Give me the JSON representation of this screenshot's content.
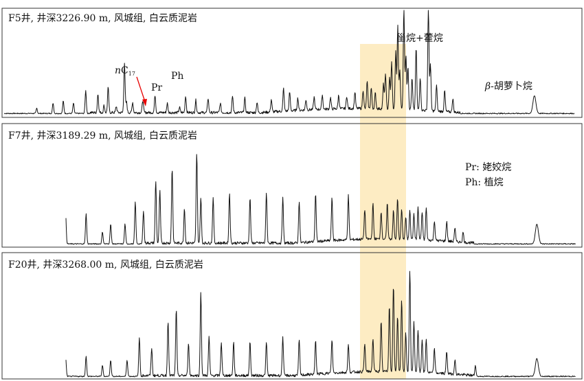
{
  "chart_data": [
    {
      "type": "line",
      "title": "F5井, 井深3226.90 m, 风城组, 白云质泥岩",
      "xlabel": "",
      "ylabel": "",
      "highlight_label": "甾烷+藿烷",
      "annotations": {
        "nc17_italic": "n",
        "nc17_main": "C",
        "nc17_sub": "17",
        "pr": "Pr",
        "ph": "Ph",
        "beta_symbol": "β",
        "beta_text": "-胡萝卜烷"
      },
      "peaks": [
        [
          0.08,
          0.05
        ],
        [
          0.12,
          0.1
        ],
        [
          0.145,
          0.12
        ],
        [
          0.17,
          0.1
        ],
        [
          0.2,
          0.22
        ],
        [
          0.23,
          0.18
        ],
        [
          0.245,
          0.07
        ],
        [
          0.255,
          0.24
        ],
        [
          0.275,
          0.06
        ],
        [
          0.295,
          0.48
        ],
        [
          0.3,
          0.1
        ],
        [
          0.315,
          0.1
        ],
        [
          0.34,
          0.12
        ],
        [
          0.37,
          0.17
        ],
        [
          0.4,
          0.09
        ],
        [
          0.43,
          0.05
        ],
        [
          0.445,
          0.16
        ],
        [
          0.47,
          0.12
        ],
        [
          0.5,
          0.14
        ],
        [
          0.53,
          0.09
        ],
        [
          0.56,
          0.16
        ],
        [
          0.59,
          0.14
        ],
        [
          0.62,
          0.1
        ],
        [
          0.655,
          0.12
        ],
        [
          0.685,
          0.22
        ],
        [
          0.7,
          0.18
        ],
        [
          0.72,
          0.12
        ],
        [
          0.74,
          0.1
        ],
        [
          0.76,
          0.12
        ],
        [
          0.78,
          0.14
        ],
        [
          0.8,
          0.11
        ],
        [
          0.82,
          0.13
        ],
        [
          0.84,
          0.12
        ],
        [
          0.86,
          0.16
        ],
        [
          0.88,
          0.18
        ],
        [
          0.89,
          0.26
        ],
        [
          0.9,
          0.2
        ],
        [
          0.91,
          0.15
        ],
        [
          0.93,
          0.24
        ],
        [
          0.935,
          0.34
        ],
        [
          0.945,
          0.3
        ],
        [
          0.95,
          0.45
        ],
        [
          0.96,
          0.55
        ],
        [
          0.965,
          0.8
        ],
        [
          0.97,
          0.38
        ],
        [
          0.98,
          0.98
        ],
        [
          0.985,
          0.52
        ],
        [
          0.99,
          0.42
        ],
        [
          1.0,
          0.3
        ],
        [
          1.01,
          0.6
        ],
        [
          1.02,
          0.32
        ],
        [
          1.04,
          1.0
        ],
        [
          1.045,
          0.45
        ],
        [
          1.06,
          0.25
        ],
        [
          1.08,
          0.2
        ],
        [
          1.1,
          0.13
        ],
        [
          1.3,
          0.17
        ]
      ]
    },
    {
      "type": "line",
      "title": "F7井, 井深3189.29 m, 风城组, 白云质泥岩",
      "xlabel": "",
      "ylabel": "",
      "legend": {
        "pr": "Pr: 姥姣烷",
        "ph": "Ph: 植烷"
      },
      "peaks": [
        [
          0.09,
          0.03
        ],
        [
          0.12,
          0.15
        ],
        [
          0.15,
          0.3
        ],
        [
          0.2,
          0.3
        ],
        [
          0.24,
          0.12
        ],
        [
          0.26,
          0.2
        ],
        [
          0.295,
          0.2
        ],
        [
          0.32,
          0.42
        ],
        [
          0.34,
          0.33
        ],
        [
          0.37,
          0.62
        ],
        [
          0.38,
          0.52
        ],
        [
          0.41,
          0.75
        ],
        [
          0.44,
          0.35
        ],
        [
          0.47,
          0.9
        ],
        [
          0.48,
          0.45
        ],
        [
          0.51,
          0.45
        ],
        [
          0.55,
          0.5
        ],
        [
          0.6,
          0.45
        ],
        [
          0.64,
          0.5
        ],
        [
          0.68,
          0.45
        ],
        [
          0.72,
          0.42
        ],
        [
          0.76,
          0.48
        ],
        [
          0.8,
          0.42
        ],
        [
          0.84,
          0.44
        ],
        [
          0.88,
          0.3
        ],
        [
          0.9,
          0.35
        ],
        [
          0.92,
          0.28
        ],
        [
          0.935,
          0.35
        ],
        [
          0.95,
          0.28
        ],
        [
          0.96,
          0.4
        ],
        [
          0.97,
          0.3
        ],
        [
          0.98,
          0.22
        ],
        [
          0.99,
          0.3
        ],
        [
          1.0,
          0.25
        ],
        [
          1.01,
          0.32
        ],
        [
          1.02,
          0.28
        ],
        [
          1.03,
          0.32
        ],
        [
          1.05,
          0.2
        ],
        [
          1.08,
          0.2
        ],
        [
          1.1,
          0.14
        ],
        [
          1.12,
          0.1
        ],
        [
          1.3,
          0.2
        ]
      ]
    },
    {
      "type": "line",
      "title": "F20井, 井深3268.00 m, 风城组, 白云质泥岩",
      "xlabel": "",
      "ylabel": "",
      "peaks": [
        [
          0.08,
          0.05
        ],
        [
          0.12,
          0.1
        ],
        [
          0.15,
          0.18
        ],
        [
          0.2,
          0.18
        ],
        [
          0.24,
          0.1
        ],
        [
          0.26,
          0.15
        ],
        [
          0.3,
          0.15
        ],
        [
          0.33,
          0.35
        ],
        [
          0.36,
          0.25
        ],
        [
          0.4,
          0.5
        ],
        [
          0.42,
          0.6
        ],
        [
          0.45,
          0.3
        ],
        [
          0.48,
          0.75
        ],
        [
          0.5,
          0.35
        ],
        [
          0.53,
          0.3
        ],
        [
          0.56,
          0.3
        ],
        [
          0.6,
          0.3
        ],
        [
          0.64,
          0.3
        ],
        [
          0.68,
          0.35
        ],
        [
          0.72,
          0.32
        ],
        [
          0.76,
          0.3
        ],
        [
          0.8,
          0.3
        ],
        [
          0.84,
          0.25
        ],
        [
          0.88,
          0.25
        ],
        [
          0.9,
          0.3
        ],
        [
          0.92,
          0.45
        ],
        [
          0.94,
          0.6
        ],
        [
          0.95,
          0.78
        ],
        [
          0.96,
          0.5
        ],
        [
          0.97,
          0.65
        ],
        [
          0.98,
          0.35
        ],
        [
          0.99,
          0.92
        ],
        [
          1.0,
          0.45
        ],
        [
          1.01,
          0.38
        ],
        [
          1.02,
          0.3
        ],
        [
          1.03,
          0.3
        ],
        [
          1.05,
          0.22
        ],
        [
          1.08,
          0.2
        ],
        [
          1.1,
          0.13
        ],
        [
          1.15,
          0.1
        ],
        [
          1.3,
          0.16
        ]
      ]
    }
  ]
}
